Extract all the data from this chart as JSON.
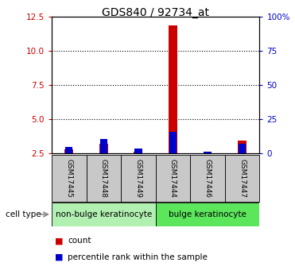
{
  "title": "GDS840 / 92734_at",
  "samples": [
    "GSM17445",
    "GSM17448",
    "GSM17449",
    "GSM17444",
    "GSM17446",
    "GSM17447"
  ],
  "count_values": [
    2.82,
    3.22,
    2.65,
    11.85,
    2.52,
    3.42
  ],
  "percentile_values": [
    3.0,
    3.55,
    2.85,
    4.05,
    2.65,
    3.2
  ],
  "ylim_left": [
    2.5,
    12.5
  ],
  "ylim_right": [
    0,
    100
  ],
  "left_ticks": [
    2.5,
    5.0,
    7.5,
    10.0,
    12.5
  ],
  "right_ticks": [
    0,
    25,
    50,
    75,
    100
  ],
  "right_tick_labels": [
    "0",
    "25",
    "50",
    "75",
    "100%"
  ],
  "groups": [
    {
      "label": "non-bulge keratinocyte",
      "color": "#b2f0b2",
      "n": 3
    },
    {
      "label": "bulge keratinocyte",
      "color": "#5ce65c",
      "n": 3
    }
  ],
  "bar_width": 0.25,
  "count_color": "#cc0000",
  "percentile_color": "#0000cc",
  "bg_color": "#c8c8c8",
  "title_fontsize": 10,
  "tick_color_left": "#cc0000",
  "tick_color_right": "#0000cc",
  "baseline": 2.5,
  "legend_items": [
    {
      "color": "#cc0000",
      "label": "count"
    },
    {
      "color": "#0000cc",
      "label": "percentile rank within the sample"
    }
  ]
}
